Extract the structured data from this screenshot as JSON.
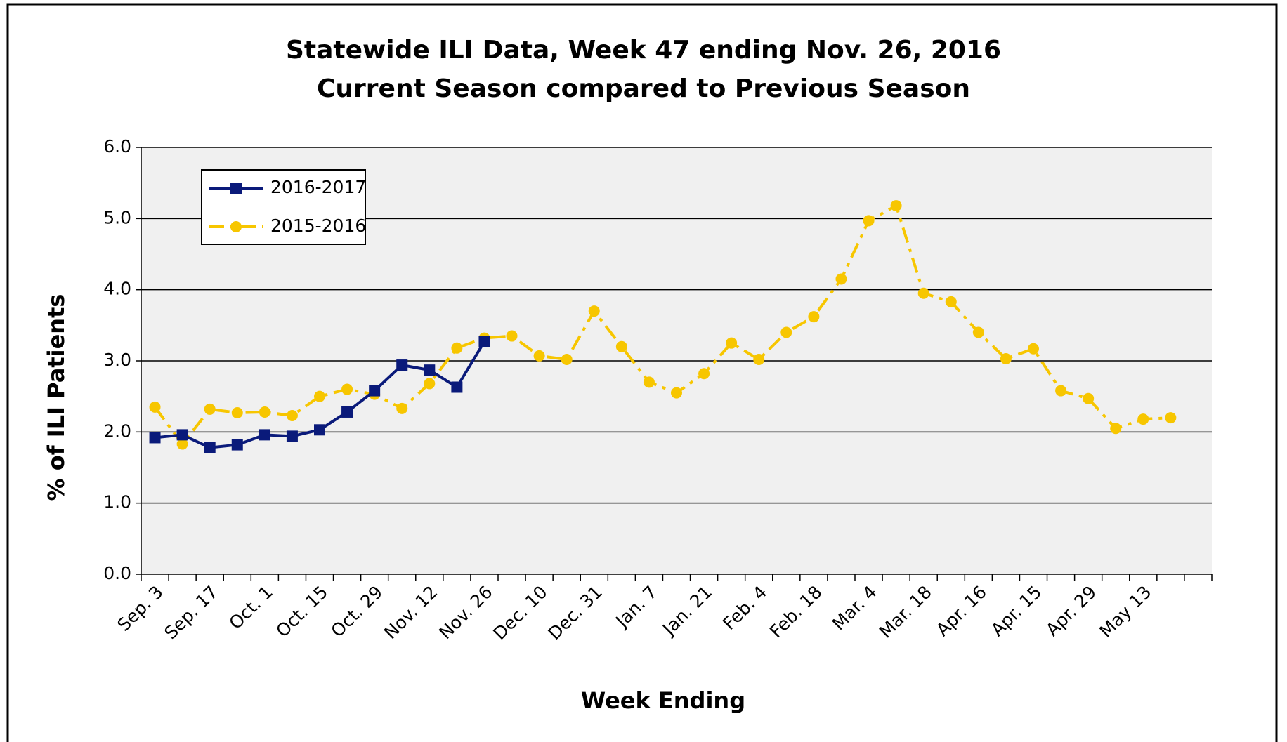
{
  "chart_data": {
    "type": "line",
    "title": [
      "Statewide ILI Data, Week 47 ending Nov. 26, 2016",
      "Current Season compared to Previous Season"
    ],
    "x_label": "Week Ending",
    "y_label": "% of ILI Patients",
    "categories": [
      "Sep. 3",
      null,
      "Sep. 17",
      null,
      "Oct. 1",
      null,
      "Oct. 15",
      null,
      "Oct. 29",
      null,
      "Nov. 12",
      null,
      "Nov. 26",
      null,
      "Dec. 10",
      null,
      "Dec. 31",
      null,
      "Jan. 7",
      null,
      "Jan. 21",
      null,
      "Feb. 4",
      null,
      "Feb. 18",
      null,
      "Mar. 4",
      null,
      "Mar. 18",
      null,
      "Apr. 16",
      null,
      "Apr. 15",
      null,
      "Apr. 29",
      null,
      "May 13",
      null,
      null
    ],
    "series": [
      {
        "name": "2016-2017",
        "color": "#0a1a7a",
        "marker": "square",
        "dash": "solid",
        "values": [
          1.92,
          1.96,
          1.78,
          1.82,
          1.96,
          1.94,
          2.03,
          2.28,
          2.58,
          2.94,
          2.87,
          2.63,
          3.27,
          null,
          null,
          null,
          null,
          null,
          null,
          null,
          null,
          null,
          null,
          null,
          null,
          null,
          null,
          null,
          null,
          null,
          null,
          null,
          null,
          null,
          null,
          null,
          null,
          null,
          null
        ]
      },
      {
        "name": "2015-2016",
        "color": "#f7c600",
        "marker": "circle",
        "dash": "dashdot",
        "values": [
          2.35,
          1.83,
          2.32,
          2.27,
          2.28,
          2.23,
          2.5,
          2.6,
          2.53,
          2.33,
          2.68,
          3.18,
          3.32,
          3.35,
          3.07,
          3.02,
          3.7,
          3.2,
          2.7,
          2.55,
          2.82,
          3.25,
          3.02,
          3.4,
          3.62,
          4.15,
          4.97,
          5.18,
          3.95,
          3.83,
          3.4,
          3.03,
          3.17,
          2.58,
          2.47,
          2.05,
          2.18,
          2.2,
          null
        ]
      }
    ],
    "ylim": [
      0,
      6
    ],
    "yticks": [
      {
        "value": 0,
        "label": "0.0"
      },
      {
        "value": 1,
        "label": "1.0"
      },
      {
        "value": 2,
        "label": "2.0"
      },
      {
        "value": 3,
        "label": "3.0"
      },
      {
        "value": 4,
        "label": "4.0"
      },
      {
        "value": 5,
        "label": "5.0"
      },
      {
        "value": 6,
        "label": "6.0"
      }
    ],
    "grid": true,
    "legend": "upper left"
  }
}
